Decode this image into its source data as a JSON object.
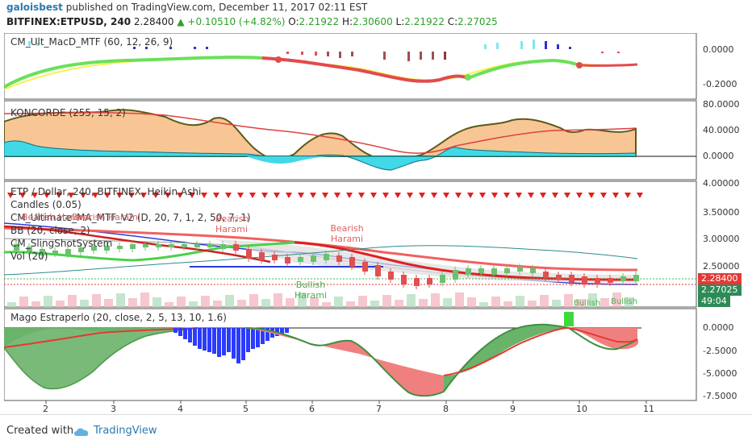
{
  "header": {
    "user": "galoisbest",
    "published": "published on TradingView.com, December 11, 2017 02:11 EST",
    "symbol": "BITFINEX:ETPUSD, 240",
    "last": "2.28400",
    "change": "+0.10510 (+4.82%)",
    "open_label": "O:",
    "open": "2.21922",
    "high_label": "H:",
    "high": "2.30600",
    "low_label": "L:",
    "low": "2.21922",
    "close_label": "C:",
    "close": "2.27025"
  },
  "panes": {
    "macd": {
      "label": "CM_Ult_MacD_MTF (60, 12, 26, 9)",
      "ticks": [
        "0.0000",
        "-0.2000"
      ]
    },
    "konc": {
      "label": "KONCORDE (255, 15, 2)",
      "ticks": [
        "80.0000",
        "40.0000",
        "0.0000"
      ]
    },
    "main": {
      "labels": [
        "ETP / Dollar, 240, BITFINEX, Heikin Ashi",
        "Candles (0.05)",
        "CM_Ultimate_MA_MTF_V2 (D, 20, 7, 1, 2, 50, 7, 1)",
        "BB (20, close, 2)",
        "CM_SlingShotSystem",
        "Vol (20)"
      ],
      "ticks": [
        "4.00000",
        "3.50000",
        "3.00000",
        "2.50000"
      ],
      "price_tags": [
        "2.28400",
        "2.27025",
        "49:04"
      ],
      "annotations": [
        "Bearish Harami",
        "Bearish Harami",
        "Bearish Harami",
        "Bearish Harami",
        "Bullish Harami",
        "Bullish",
        "Bullish"
      ]
    },
    "mago": {
      "label": "Mago Estraperlo (20, close, 2, 5, 13, 10, 1.6)",
      "ticks": [
        "0.0000",
        "-2.5000",
        "-5.0000",
        "-7.5000"
      ]
    }
  },
  "xaxis": [
    "2",
    "3",
    "4",
    "5",
    "6",
    "7",
    "8",
    "9",
    "10",
    "11"
  ],
  "footer": {
    "created": "Created with",
    "brand": "TradingView"
  },
  "colors": {
    "green": "#4caf50",
    "red": "#e53935",
    "blue": "#1e3cff",
    "orange_fill": "#f9c49a",
    "cyan": "#29d3e8"
  }
}
